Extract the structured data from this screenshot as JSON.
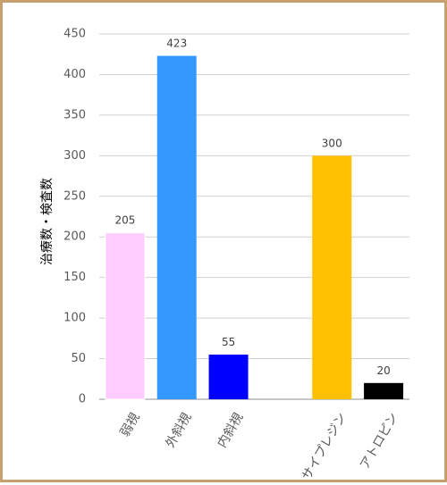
{
  "chart_data": {
    "type": "bar",
    "categories": [
      "弱視",
      "外斜視",
      "内斜視",
      "",
      "サイプレジン",
      "アトロピン"
    ],
    "values": [
      205,
      423,
      55,
      null,
      300,
      20
    ],
    "colors": [
      "#ffccff",
      "#3399ff",
      "#0000ff",
      null,
      "#ffc000",
      "#000000"
    ],
    "title": "",
    "xlabel": "",
    "ylabel": "治療数・検査数",
    "ylim": [
      0,
      450
    ],
    "yticks": [
      0,
      50,
      100,
      150,
      200,
      250,
      300,
      350,
      400,
      450
    ],
    "grid": true,
    "legend": "none",
    "data_labels": true
  }
}
